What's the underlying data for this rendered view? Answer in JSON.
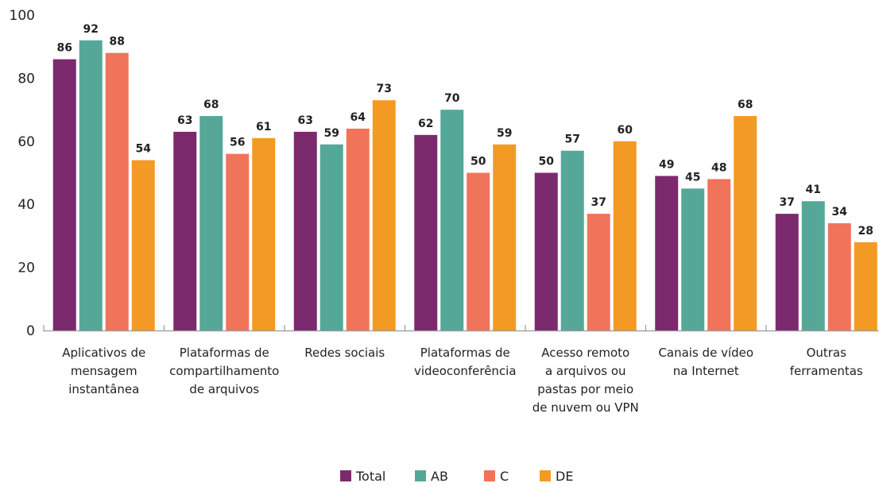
{
  "chart_data": {
    "type": "bar",
    "categories": [
      [
        "Aplicativos de",
        "mensagem",
        "instantânea"
      ],
      [
        "Plataformas de",
        "compartilhamento",
        "de arquivos"
      ],
      [
        "Redes sociais"
      ],
      [
        "Plataformas de",
        "videoconferência"
      ],
      [
        "Acesso remoto",
        "a arquivos ou",
        "pastas por meio",
        "de nuvem ou VPN"
      ],
      [
        "Canais de vídeo",
        "na Internet"
      ],
      [
        "Outras",
        "ferramentas"
      ]
    ],
    "series": [
      {
        "name": "Total",
        "color": "#7b2a6e",
        "values": [
          86,
          63,
          63,
          62,
          50,
          49,
          37
        ]
      },
      {
        "name": "AB",
        "color": "#55a898",
        "values": [
          92,
          68,
          59,
          70,
          57,
          45,
          41
        ]
      },
      {
        "name": "C",
        "color": "#f0745a",
        "values": [
          88,
          56,
          64,
          50,
          37,
          48,
          34
        ]
      },
      {
        "name": "DE",
        "color": "#f39a24",
        "values": [
          54,
          61,
          73,
          59,
          60,
          68,
          28
        ]
      }
    ],
    "yticks": [
      0,
      20,
      40,
      60,
      80,
      100
    ],
    "ylim": [
      0,
      100
    ],
    "grid": false,
    "legend_position": "bottom-center"
  }
}
